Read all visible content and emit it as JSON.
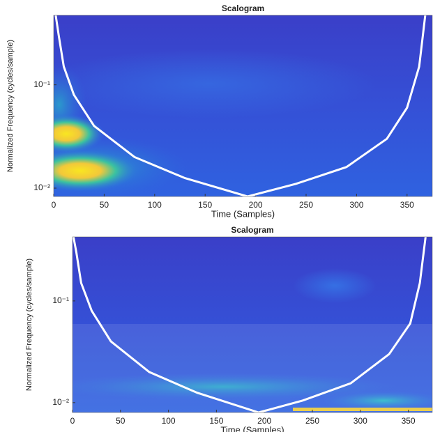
{
  "chart_data": [
    {
      "type": "scalogram",
      "title": "Scalogram",
      "xlabel": "Time (Samples)",
      "ylabel": "Normalized Frequency (cycles/sample)",
      "xlim": [
        0,
        375
      ],
      "xticks": [
        0,
        50,
        100,
        150,
        200,
        250,
        300,
        350
      ],
      "ylim": [
        0.0083,
        0.47
      ],
      "log_y": true,
      "yticks": [
        {
          "value": 0.01,
          "label": "10⁻²"
        },
        {
          "value": 0.1,
          "label": "10⁻¹"
        }
      ],
      "coi": {
        "color": "#ffffff",
        "x": [
          2,
          5,
          10,
          20,
          40,
          80,
          130,
          192,
          240,
          290,
          330,
          350,
          362,
          368
        ],
        "values": [
          0.47,
          0.3,
          0.15,
          0.08,
          0.04,
          0.02,
          0.0125,
          0.0083,
          0.011,
          0.016,
          0.03,
          0.06,
          0.15,
          0.47
        ]
      }
    },
    {
      "type": "scalogram",
      "title": "Scalogram",
      "xlabel": "Time (Samples)",
      "ylabel": "Normalized Frequency (cycles/sample)",
      "xlim": [
        0,
        375
      ],
      "xticks": [
        0,
        50,
        100,
        150,
        200,
        250,
        300,
        350
      ],
      "ylim": [
        0.008,
        0.426
      ],
      "log_y": true,
      "yticks": [
        {
          "value": 0.01,
          "label": "10⁻²"
        },
        {
          "value": 0.1,
          "label": "10⁻¹"
        }
      ],
      "coi": {
        "color": "#ffffff",
        "x": [
          1,
          4,
          9,
          20,
          40,
          80,
          130,
          194,
          240,
          290,
          330,
          352,
          362,
          368
        ],
        "values": [
          0.426,
          0.3,
          0.15,
          0.08,
          0.04,
          0.02,
          0.0125,
          0.008,
          0.0105,
          0.0155,
          0.03,
          0.06,
          0.15,
          0.426
        ]
      }
    }
  ]
}
